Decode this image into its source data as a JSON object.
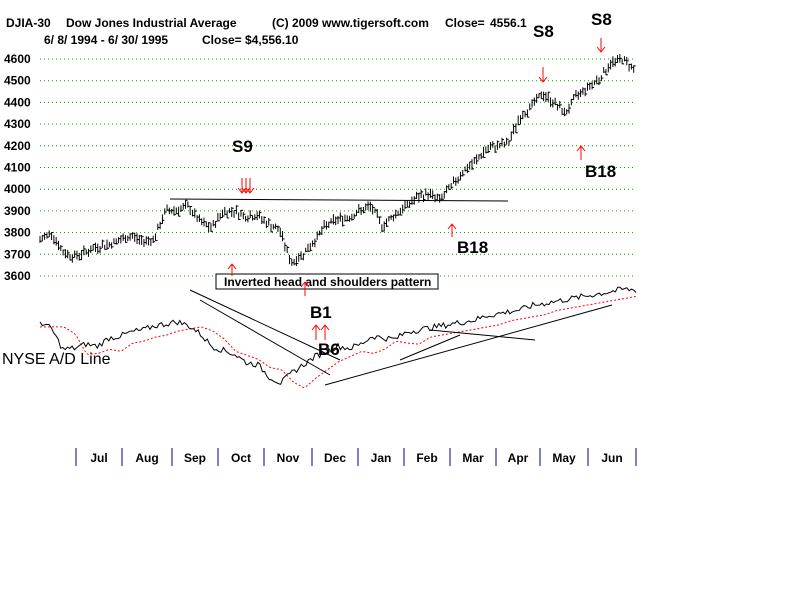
{
  "header": {
    "symbol": "DJIA-30",
    "name": "Dow Jones Industrial Average",
    "copyright": "(C) 2009 www.tigersoft.com",
    "close_label": "Close=",
    "close_value": "4556.1",
    "date_range": "6/ 8/ 1994 -  6/ 30/ 1995",
    "close2": "Close= $4,556.10"
  },
  "colors": {
    "price_bars": "#000000",
    "grid": "#009900",
    "signal_arrows": "#ff0000",
    "ma_line": "#ff0000",
    "trendlines": "#000000",
    "month_ticks": "#000099"
  },
  "chart_data": [
    {
      "type": "bar",
      "subtype": "ohlc-price",
      "title": "DJIA-30  Dow Jones Industrial Average",
      "ylim": [
        3550,
        4640
      ],
      "yticks": [
        3600,
        3700,
        3800,
        3900,
        4000,
        4100,
        4200,
        4300,
        4400,
        4500,
        4600
      ],
      "grid": true,
      "x_months": [
        "Jul",
        "Aug",
        "Sep",
        "Oct",
        "Nov",
        "Dec",
        "Jan",
        "Feb",
        "Mar",
        "Apr",
        "May",
        "Jun"
      ],
      "series": [
        {
          "values_approx_by_week": [
            3765,
            3800,
            3710,
            3690,
            3710,
            3735,
            3745,
            3765,
            3785,
            3760,
            3770,
            3900,
            3905,
            3920,
            3850,
            3820,
            3895,
            3900,
            3875,
            3880,
            3840,
            3810,
            3660,
            3700,
            3760,
            3830,
            3860,
            3870,
            3900,
            3920,
            3830,
            3880,
            3920,
            3960,
            3980,
            3950,
            4010,
            4080,
            4120,
            4180,
            4200,
            4210,
            4330,
            4380,
            4440,
            4400,
            4350,
            4430,
            4470,
            4510,
            4580,
            4600,
            4556
          ]
        }
      ],
      "annotations": [
        {
          "label": "S9",
          "date": "Oct",
          "type": "sell"
        },
        {
          "label": "B1",
          "date": "Nov",
          "type": "buy"
        },
        {
          "label": "B6",
          "date": "Dec",
          "type": "buy"
        },
        {
          "label": "B18",
          "date": "Mar",
          "type": "buy"
        },
        {
          "label": "S8",
          "date": "Apr",
          "type": "sell"
        },
        {
          "label": "B18",
          "date": "May",
          "type": "buy"
        },
        {
          "label": "S8",
          "date": "Jun",
          "type": "sell"
        },
        {
          "label": "Inverted head and shoulders pattern",
          "type": "note"
        }
      ]
    },
    {
      "type": "line",
      "name": "NYSE A/D Line",
      "title": "NYSE A/D Line",
      "values_approx_by_week": [
        0.62,
        0.55,
        0.35,
        0.36,
        0.4,
        0.38,
        0.46,
        0.48,
        0.52,
        0.54,
        0.58,
        0.6,
        0.62,
        0.58,
        0.5,
        0.38,
        0.34,
        0.3,
        0.22,
        0.2,
        0.08,
        0.02,
        0.12,
        0.2,
        0.28,
        0.33,
        0.38,
        0.36,
        0.4,
        0.48,
        0.46,
        0.45,
        0.52,
        0.54,
        0.56,
        0.58,
        0.6,
        0.62,
        0.64,
        0.68,
        0.7,
        0.72,
        0.74,
        0.78,
        0.8,
        0.82,
        0.84,
        0.86,
        0.88,
        0.9,
        0.92,
        0.94,
        0.93
      ]
    }
  ],
  "signals": {
    "s9": "S9",
    "b1": "B1",
    "b6": "B6",
    "b18a": "B18",
    "s8a": "S8",
    "b18b": "B18",
    "s8b": "S8"
  },
  "notes": {
    "ihs": "Inverted head and shoulders pattern",
    "ad_label": "NYSE A/D Line"
  }
}
